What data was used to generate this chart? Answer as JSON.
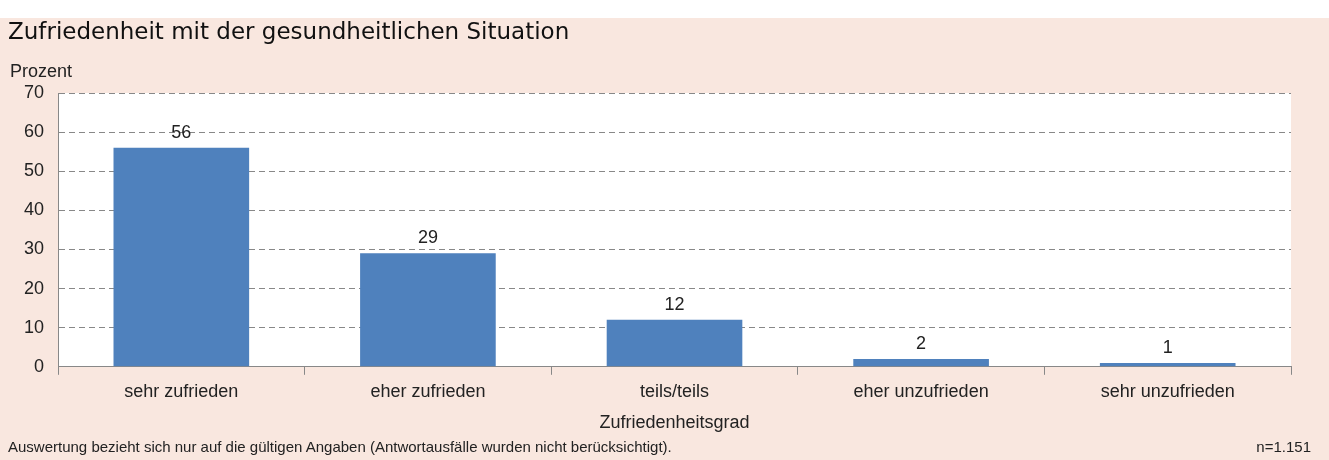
{
  "chart_data": {
    "type": "bar",
    "title": "Zufriedenheit mit der gesundheitlichen Situation",
    "ylabel": "Prozent",
    "xlabel": "Zufriedenheitsgrad",
    "categories": [
      "sehr zufrieden",
      "eher zufrieden",
      "teils/teils",
      "eher unzufrieden",
      "sehr unzufrieden"
    ],
    "values": [
      56,
      29,
      12,
      2,
      1
    ],
    "color": "#4f81bd",
    "ylim": [
      0,
      70
    ],
    "yticks": [
      0,
      10,
      20,
      30,
      40,
      50,
      60,
      70
    ],
    "grid": "y",
    "data_labels": true,
    "legend": false,
    "annotations": [
      "Auswertung bezieht sich nur auf die gültigen Angaben (Antwortausfälle wurden nicht berücksichtigt).",
      "n=1.151"
    ]
  }
}
